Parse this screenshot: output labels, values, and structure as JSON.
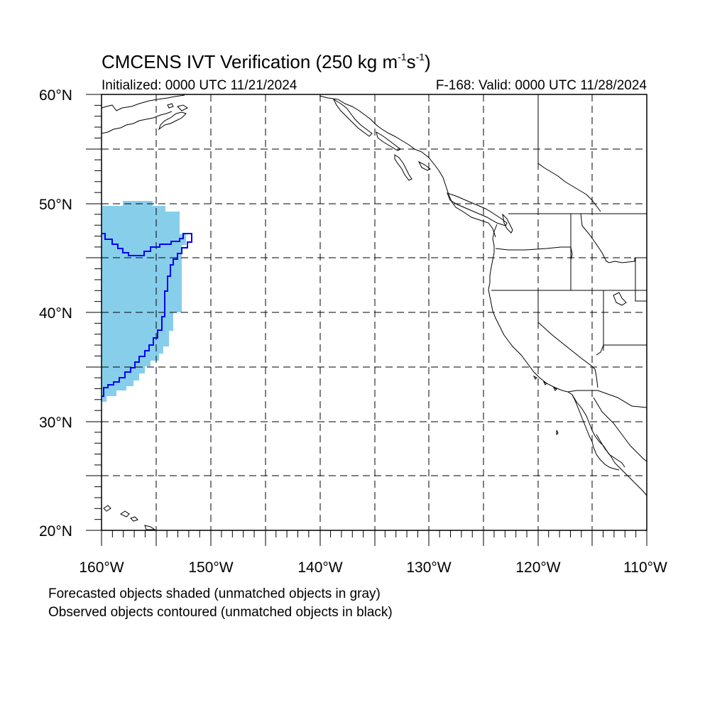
{
  "title": {
    "main": "CMCENS IVT Verification (250 kg m",
    "exp1": "-1",
    "mid": "s",
    "exp2": "-1",
    "close": ")"
  },
  "subtitle": {
    "initialized": "Initialized: 0000 UTC 11/21/2024",
    "valid": "F-168: Valid: 0000 UTC 11/28/2024"
  },
  "axes": {
    "lat_labels": [
      "60°N",
      "50°N",
      "40°N",
      "30°N",
      "20°N"
    ],
    "lon_labels": [
      "160°W",
      "150°W",
      "140°W",
      "130°W",
      "120°W",
      "110°W"
    ]
  },
  "footnote": {
    "line1": "Forecasted objects shaded (unmatched objects in gray)",
    "line2": "Observed objects contoured (unmatched objects in black)"
  },
  "colors": {
    "forecast_fill": "#87ceeb",
    "observed_contour": "#0000ff",
    "coastline": "#000000",
    "grid": "#000000"
  }
}
